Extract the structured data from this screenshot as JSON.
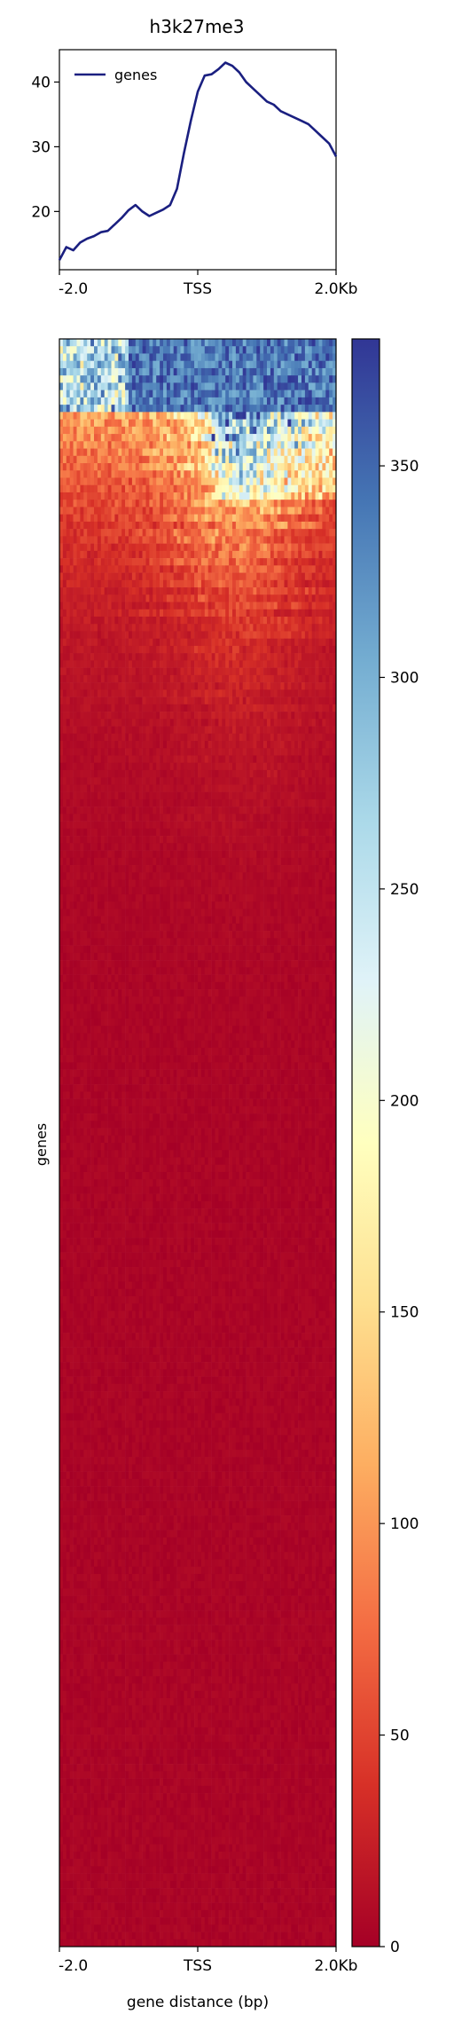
{
  "chart_data": [
    {
      "type": "line",
      "title": "h3k27me3",
      "legend": "top-left",
      "grid": false,
      "series": [
        {
          "name": "genes",
          "color": "#1a1f80",
          "x": [
            -2000,
            -1900,
            -1800,
            -1700,
            -1600,
            -1500,
            -1400,
            -1300,
            -1200,
            -1100,
            -1000,
            -900,
            -800,
            -700,
            -600,
            -500,
            -400,
            -300,
            -200,
            -100,
            0,
            100,
            200,
            300,
            400,
            500,
            600,
            700,
            800,
            900,
            1000,
            1100,
            1200,
            1300,
            1400,
            1500,
            1600,
            1700,
            1800,
            1900,
            2000
          ],
          "values": [
            12.5,
            14.5,
            14.0,
            15.2,
            15.8,
            16.2,
            16.8,
            17.0,
            18.0,
            19.0,
            20.2,
            21.0,
            20.0,
            19.3,
            19.8,
            20.3,
            21.0,
            23.5,
            29.0,
            34.0,
            38.5,
            41.0,
            41.2,
            42.0,
            43.0,
            42.5,
            41.5,
            40.0,
            39.0,
            38.0,
            37.0,
            36.5,
            35.5,
            35.0,
            34.5,
            34.0,
            33.5,
            32.5,
            31.5,
            30.5,
            28.5
          ]
        }
      ],
      "xticks": [
        "-2.0",
        "TSS",
        "2.0Kb"
      ],
      "ylim": [
        11,
        45
      ],
      "yticks": [
        20,
        30,
        40
      ]
    },
    {
      "type": "heatmap",
      "ylabel": "genes",
      "xlabel": "gene distance (bp)",
      "xticks": [
        "-2.0",
        "TSS",
        "2.0Kb"
      ],
      "colormap": "RdYlBu",
      "colormap_stops": [
        "#a50026",
        "#d73027",
        "#f46d43",
        "#fdae61",
        "#fee090",
        "#ffffbf",
        "#e0f3f8",
        "#abd9e9",
        "#74add1",
        "#4575b4",
        "#313695"
      ],
      "vmin": 0,
      "vmax": 380,
      "colorbar_ticks": [
        0,
        50,
        100,
        150,
        200,
        250,
        300,
        350
      ],
      "columns": 80,
      "rows": 220,
      "pattern": "rows sorted by mean signal; top rows saturated blue, upper rows orange-yellow peaking downstream of TSS, remaining rows low (dark red)"
    }
  ]
}
